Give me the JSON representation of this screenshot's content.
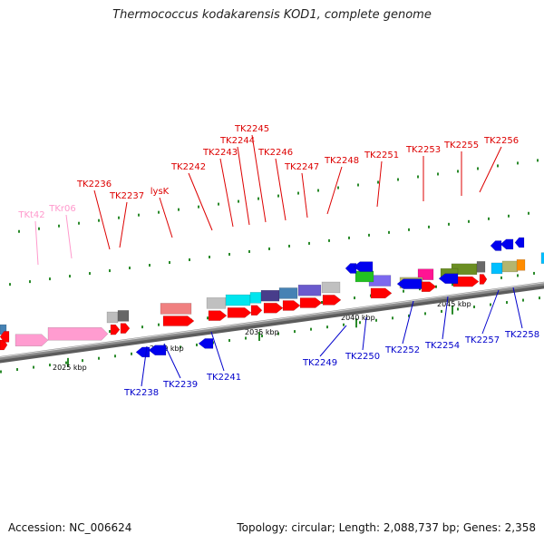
{
  "title": "Thermococcus kodakarensis KOD1, complete genome",
  "footer": {
    "accession": "Accession: NC_006624",
    "topology": "Topology: circular; Length: 2,088,737 bp; Genes: 2,358"
  },
  "colors": {
    "forward_label": "#dd0000",
    "reverse_label": "#0000cc",
    "rna_label": "#ff99cc",
    "backbone": "#8c8c8c",
    "tick": "#2a8a2a"
  },
  "scale_labels": [
    "2025 kbp",
    "2030 kbp",
    "2035 kbp",
    "2040 kbp",
    "2045 kbp"
  ],
  "labels": {
    "forward": [
      "TK2236",
      "TK2237",
      "lysK",
      "TK2242",
      "TK2243",
      "TK2244",
      "TK2245",
      "TK2246",
      "TK2247",
      "TK2248",
      "TK2251",
      "TK2253",
      "TK2255",
      "TK2256"
    ],
    "reverse": [
      "TK2238",
      "TK2239",
      "TK2241",
      "TK2249",
      "TK2250",
      "TK2252",
      "TK2254",
      "TK2257",
      "TK2258"
    ],
    "rna": [
      "TKt42",
      "TKr06"
    ]
  }
}
